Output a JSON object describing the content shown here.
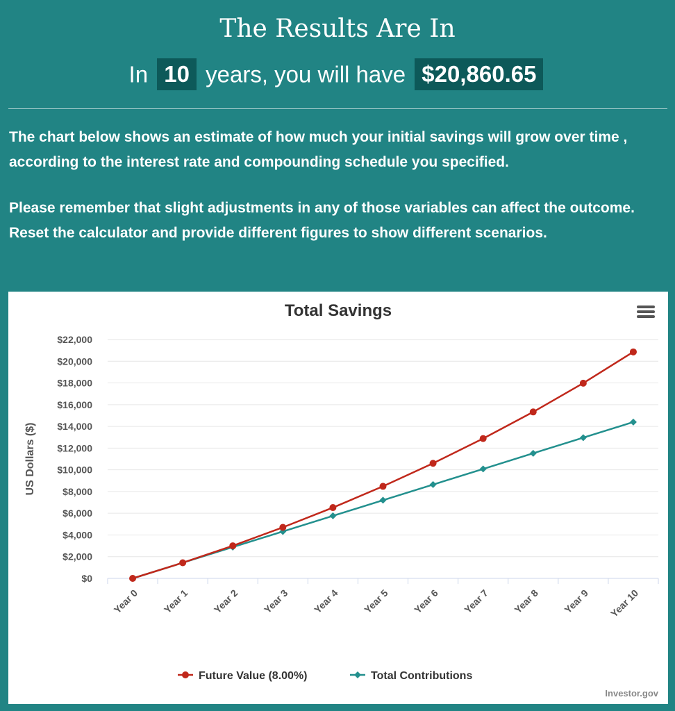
{
  "header": {
    "title": "The Results Are In",
    "prefix": "In",
    "years": "10",
    "middle": "years, you will have",
    "amount": "$20,860.65"
  },
  "description": {
    "paragraph1": "The chart below shows an estimate of how much your initial savings will grow over time , according to the interest rate and compounding schedule you specified.",
    "paragraph2": "Please remember that slight adjustments in any of those variables can affect the outcome. Reset the calculator and provide different figures to show different scenarios."
  },
  "credit": "Investor.gov",
  "colors": {
    "future_value": "#c0281b",
    "total_contributions": "#23908e",
    "background": "#218484"
  },
  "chart_data": {
    "type": "line",
    "title": "Total Savings",
    "ylabel": "US Dollars ($)",
    "xlabel": "",
    "categories": [
      "Year 0",
      "Year 1",
      "Year 2",
      "Year 3",
      "Year 4",
      "Year 5",
      "Year 6",
      "Year 7",
      "Year 8",
      "Year 9",
      "Year 10"
    ],
    "ylim": [
      0,
      22000
    ],
    "yticks": [
      0,
      2000,
      4000,
      6000,
      8000,
      10000,
      12000,
      14000,
      16000,
      18000,
      20000,
      22000
    ],
    "ytick_labels": [
      "$0",
      "$2,000",
      "$4,000",
      "$6,000",
      "$8,000",
      "$10,000",
      "$12,000",
      "$14,000",
      "$16,000",
      "$18,000",
      "$20,000",
      "$22,000"
    ],
    "grid": true,
    "legend_position": "bottom-center",
    "series": [
      {
        "name": "Future Value (8.00%)",
        "marker": "circle",
        "values": [
          0,
          1440,
          3000,
          4700,
          6520,
          8480,
          10600,
          12880,
          15330,
          17980,
          20860.65
        ]
      },
      {
        "name": "Total Contributions",
        "marker": "diamond",
        "values": [
          0,
          1440,
          2880,
          4320,
          5760,
          7200,
          8640,
          10080,
          11520,
          12960,
          14400
        ]
      }
    ]
  }
}
